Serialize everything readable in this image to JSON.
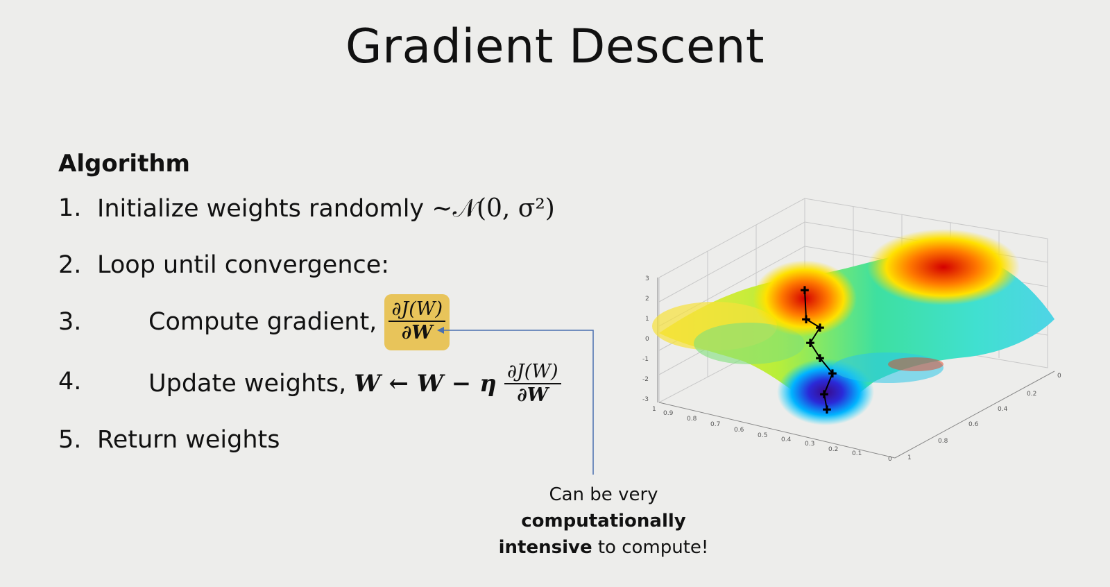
{
  "slide": {
    "title": "Gradient Descent",
    "algorithm_heading": "Algorithm",
    "steps": [
      {
        "number": "1.",
        "text": "Initialize weights randomly",
        "math": "~𝒩(0, σ²)"
      },
      {
        "number": "2.",
        "text": "Loop until convergence:"
      },
      {
        "number": "3.",
        "text": "Compute gradient,",
        "frac_num": "∂J(W)",
        "frac_den": "∂W"
      },
      {
        "number": "4.",
        "text": "Update weights,",
        "update_lhs": "W ← W − η",
        "frac_num": "∂J(W)",
        "frac_den": "∂W"
      },
      {
        "number": "5.",
        "text": "Return weights"
      }
    ],
    "note": {
      "line1": "Can be very",
      "line2_bold": "computationally",
      "line3_bold": "intensive",
      "line3_rest": " to compute!"
    }
  },
  "surface_plot": {
    "z_ticks": [
      "3",
      "2",
      "1",
      "0",
      "-1",
      "-2",
      "-3"
    ],
    "x_ticks": [
      "1",
      "0.9",
      "0.8",
      "0.7",
      "0.6",
      "0.5",
      "0.4",
      "0.3",
      "0.2",
      "0.1",
      "0"
    ],
    "y_ticks": [
      "0",
      "0.2",
      "0.4",
      "0.6",
      "0.8",
      "1"
    ]
  },
  "colors": {
    "background": "#ededeb",
    "highlight": "#e8c45a",
    "arrow": "#4a6fb0"
  }
}
